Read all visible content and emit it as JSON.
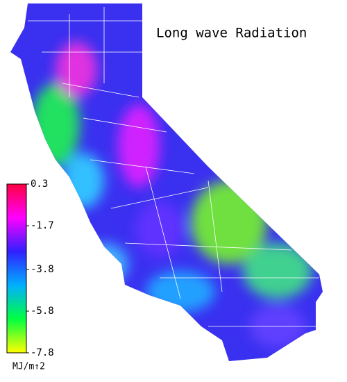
{
  "map": {
    "title": "Long wave Radiation",
    "colorbar": {
      "range": [
        -7.8,
        0.3
      ],
      "ticks": [
        0.3,
        -1.7,
        -3.8,
        -5.8,
        -7.8
      ],
      "unit": "MJ/m↑2",
      "colors": [
        "#ff0040",
        "#ff00ff",
        "#3020ff",
        "#00b0ff",
        "#00ff40",
        "#ffff00"
      ]
    }
  }
}
